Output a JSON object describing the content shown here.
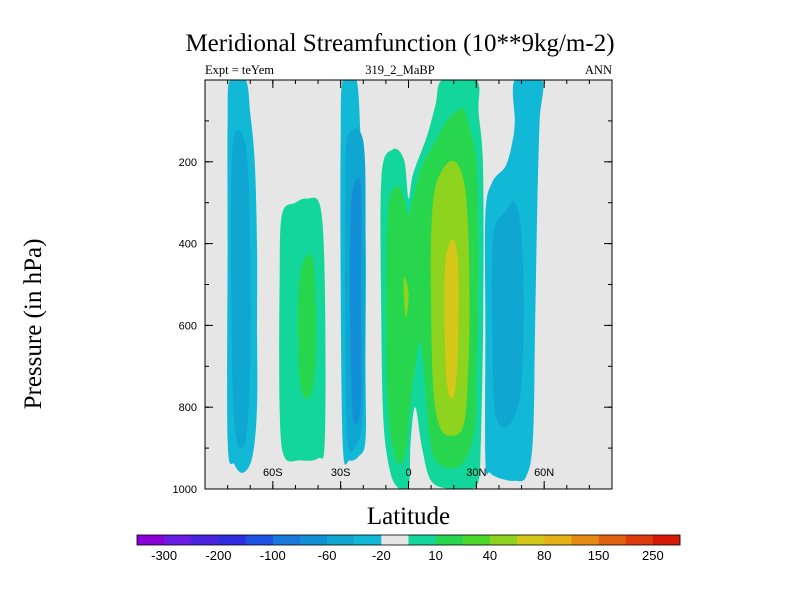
{
  "chart_data": {
    "type": "contour",
    "title": "Meridional Streamfunction (10**9kg/m-2)",
    "subtitle_left": "Expt = teYem",
    "subtitle_center": "319_2_MaBP",
    "subtitle_right": "ANN",
    "xlabel": "Latitude",
    "ylabel": "Pressure (in hPa)",
    "xlim": [
      -90,
      90
    ],
    "ylim": [
      1000,
      0
    ],
    "x_ticks": [
      {
        "value": -60,
        "label": "60S"
      },
      {
        "value": -30,
        "label": "30S"
      },
      {
        "value": 0,
        "label": "0"
      },
      {
        "value": 30,
        "label": "30N"
      },
      {
        "value": 60,
        "label": "60N"
      }
    ],
    "y_ticks": [
      {
        "value": 200,
        "label": "200"
      },
      {
        "value": 400,
        "label": "400"
      },
      {
        "value": 600,
        "label": "600"
      },
      {
        "value": 800,
        "label": "800"
      },
      {
        "value": 1000,
        "label": "1000"
      }
    ],
    "background_color": "#e6e6e6",
    "colorbar": {
      "colors": [
        "#8a00d8",
        "#6a1be6",
        "#4a23e0",
        "#2e2de0",
        "#1e50e2",
        "#1a78dc",
        "#138fd8",
        "#0fa6d2",
        "#12b9d6",
        "#e6e6e6",
        "#12d69a",
        "#28d64e",
        "#4cd82a",
        "#8ed31d",
        "#d6c81a",
        "#e6b016",
        "#e68a12",
        "#e3620f",
        "#e03a0c",
        "#d81908"
      ],
      "labels": [
        "-300",
        "-200",
        "-100",
        "-60",
        "-20",
        "10",
        "40",
        "80",
        "150",
        "250"
      ]
    },
    "regions": [
      {
        "name": "sh-polar-cell",
        "level": -20,
        "color": "#12b9d6",
        "points": [
          [
            -79,
            0
          ],
          [
            -72,
            0
          ],
          [
            -70,
            80
          ],
          [
            -68,
            200
          ],
          [
            -67,
            400
          ],
          [
            -67,
            600
          ],
          [
            -67,
            800
          ],
          [
            -69,
            920
          ],
          [
            -73,
            960
          ],
          [
            -77,
            940
          ],
          [
            -80,
            880
          ],
          [
            -80,
            400
          ],
          [
            -80,
            100
          ]
        ]
      },
      {
        "name": "sh-polar-core",
        "level": -60,
        "color": "#0fa6d2",
        "points": [
          [
            -78,
            180
          ],
          [
            -72,
            160
          ],
          [
            -70,
            400
          ],
          [
            -70,
            700
          ],
          [
            -72,
            880
          ],
          [
            -76,
            880
          ],
          [
            -78,
            700
          ]
        ]
      },
      {
        "name": "sh-ferrel-cell",
        "level": 10,
        "color": "#12d69a",
        "points": [
          [
            -56,
            330
          ],
          [
            -50,
            300
          ],
          [
            -45,
            290
          ],
          [
            -39,
            310
          ],
          [
            -37,
            500
          ],
          [
            -37,
            880
          ],
          [
            -40,
            925
          ],
          [
            -48,
            930
          ],
          [
            -55,
            920
          ],
          [
            -57,
            800
          ],
          [
            -57,
            500
          ]
        ]
      },
      {
        "name": "sh-ferrel-core",
        "level": 40,
        "color": "#28d64e",
        "points": [
          [
            -48,
            480
          ],
          [
            -45,
            430
          ],
          [
            -42,
            450
          ],
          [
            -41,
            620
          ],
          [
            -42,
            740
          ],
          [
            -45,
            780
          ],
          [
            -48,
            740
          ],
          [
            -49,
            600
          ]
        ]
      },
      {
        "name": "sh-hadley-cell",
        "level": -20,
        "color": "#12b9d6",
        "points": [
          [
            -29,
            0
          ],
          [
            -23,
            0
          ],
          [
            -21,
            160
          ],
          [
            -19,
            360
          ],
          [
            -19,
            700
          ],
          [
            -19,
            880
          ],
          [
            -22,
            920
          ],
          [
            -26,
            930
          ],
          [
            -29,
            900
          ],
          [
            -30,
            500
          ],
          [
            -30,
            140
          ]
        ]
      },
      {
        "name": "sh-hadley-mid",
        "level": -60,
        "color": "#0fa6d2",
        "points": [
          [
            -27,
            140
          ],
          [
            -20,
            150
          ],
          [
            -19,
            400
          ],
          [
            -20,
            800
          ],
          [
            -23,
            890
          ],
          [
            -27,
            880
          ],
          [
            -28,
            600
          ],
          [
            -28,
            300
          ]
        ]
      },
      {
        "name": "sh-hadley-core",
        "level": -100,
        "color": "#138fd8",
        "points": [
          [
            -25,
            280
          ],
          [
            -21,
            260
          ],
          [
            -21,
            500
          ],
          [
            -21,
            780
          ],
          [
            -23,
            840
          ],
          [
            -25,
            790
          ],
          [
            -26,
            500
          ]
        ]
      },
      {
        "name": "ne-hadley-outer",
        "level": 10,
        "color": "#12d69a",
        "points": [
          [
            -12,
            240
          ],
          [
            -7,
            170
          ],
          [
            -2,
            195
          ],
          [
            0,
            290
          ],
          [
            2,
            230
          ],
          [
            8,
            140
          ],
          [
            12,
            60
          ],
          [
            15,
            0
          ],
          [
            30,
            0
          ],
          [
            31,
            80
          ],
          [
            33,
            220
          ],
          [
            33,
            600
          ],
          [
            32,
            880
          ],
          [
            31,
            980
          ],
          [
            27,
            1000
          ],
          [
            18,
            1000
          ],
          [
            10,
            980
          ],
          [
            6,
            900
          ],
          [
            3,
            800
          ],
          [
            1,
            880
          ],
          [
            0,
            1000
          ],
          [
            -4,
            1000
          ],
          [
            -8,
            960
          ],
          [
            -11,
            840
          ],
          [
            -12,
            600
          ]
        ]
      },
      {
        "name": "hadley-level-40",
        "level": 40,
        "color": "#28d64e",
        "points": [
          [
            -9,
            320
          ],
          [
            -5,
            260
          ],
          [
            -2,
            290
          ],
          [
            0,
            330
          ],
          [
            2,
            290
          ],
          [
            6,
            210
          ],
          [
            12,
            150
          ],
          [
            17,
            100
          ],
          [
            24,
            70
          ],
          [
            27,
            120
          ],
          [
            30,
            200
          ],
          [
            31,
            440
          ],
          [
            30,
            740
          ],
          [
            29,
            860
          ],
          [
            25,
            930
          ],
          [
            19,
            950
          ],
          [
            12,
            930
          ],
          [
            9,
            860
          ],
          [
            7,
            720
          ],
          [
            5,
            640
          ],
          [
            3,
            700
          ],
          [
            1,
            780
          ],
          [
            -1,
            900
          ],
          [
            -4,
            940
          ],
          [
            -7,
            900
          ],
          [
            -9,
            800
          ],
          [
            -10,
            600
          ]
        ]
      },
      {
        "name": "hadley-level-80",
        "level": 80,
        "color": "#8ed31d",
        "points": [
          [
            12,
            260
          ],
          [
            18,
            200
          ],
          [
            23,
            220
          ],
          [
            26,
            320
          ],
          [
            27,
            560
          ],
          [
            26,
            760
          ],
          [
            24,
            850
          ],
          [
            19,
            870
          ],
          [
            14,
            850
          ],
          [
            11,
            760
          ],
          [
            10,
            560
          ],
          [
            10,
            380
          ]
        ]
      },
      {
        "name": "hadley-level-80-sh",
        "level": 80,
        "color": "#8ed31d",
        "points": [
          [
            -2,
            480
          ],
          [
            0,
            520
          ],
          [
            -1,
            580
          ],
          [
            -2,
            540
          ]
        ]
      },
      {
        "name": "hadley-level-150",
        "level": 150,
        "color": "#d6c81a",
        "points": [
          [
            17,
            420
          ],
          [
            20,
            390
          ],
          [
            22,
            460
          ],
          [
            22,
            620
          ],
          [
            21,
            740
          ],
          [
            19,
            780
          ],
          [
            17,
            740
          ],
          [
            16,
            620
          ],
          [
            16,
            480
          ]
        ]
      },
      {
        "name": "nh-ferrel-cell",
        "level": -20,
        "color": "#12b9d6",
        "points": [
          [
            47,
            0
          ],
          [
            59,
            0
          ],
          [
            58,
            100
          ],
          [
            57,
            300
          ],
          [
            56,
            600
          ],
          [
            55,
            880
          ],
          [
            52,
            970
          ],
          [
            47,
            980
          ],
          [
            41,
            975
          ],
          [
            36,
            960
          ],
          [
            34,
            930
          ],
          [
            34,
            600
          ],
          [
            34,
            330
          ],
          [
            37,
            250
          ],
          [
            43,
            210
          ],
          [
            46,
            150
          ],
          [
            47,
            100
          ]
        ]
      },
      {
        "name": "nh-ferrel-core",
        "level": -60,
        "color": "#0fa6d2",
        "points": [
          [
            38,
            360
          ],
          [
            43,
            320
          ],
          [
            47,
            300
          ],
          [
            50,
            380
          ],
          [
            51,
            560
          ],
          [
            50,
            740
          ],
          [
            47,
            820
          ],
          [
            42,
            850
          ],
          [
            38,
            800
          ],
          [
            37,
            600
          ],
          [
            37,
            440
          ]
        ]
      }
    ]
  }
}
